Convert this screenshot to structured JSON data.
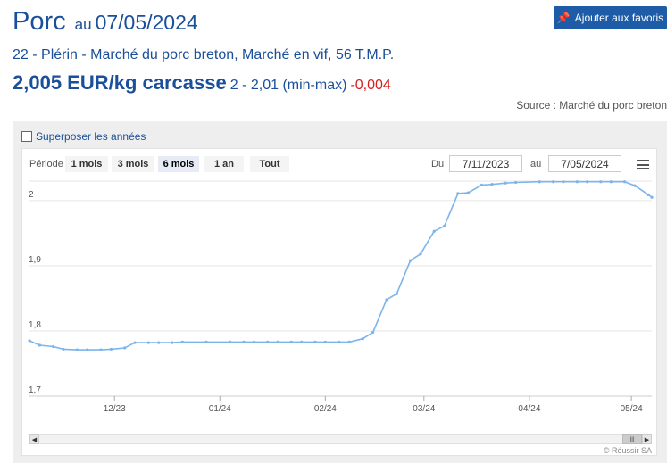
{
  "header": {
    "product": "Porc",
    "au": "au",
    "date": "07/05/2024",
    "favorite_label": "Ajouter aux favoris",
    "favorite_icon": "pin-icon",
    "subtitle": "22 - Plérin - Marché du porc breton, Marché en vif, 56 T.M.P.",
    "price": "2,005 EUR/kg carcasse",
    "range": "2 - 2,01 (min-max)",
    "delta": "-0,004",
    "source": "Source : Marché du porc breton"
  },
  "colors": {
    "brand": "#1a4f99",
    "button": "#1f5ca8",
    "negative": "#d32020",
    "line": "#7cb5ec",
    "grid": "#e6e6e6"
  },
  "controls": {
    "overlay_label": "Superposer les années",
    "overlay_checked": false,
    "period_label": "Période",
    "periods": [
      "1 mois",
      "3 mois",
      "6 mois",
      "1 an",
      "Tout"
    ],
    "active_period": "6 mois",
    "du_label": "Du",
    "au_label": "au",
    "from_date": "7/11/2023",
    "to_date": "7/05/2024",
    "menu_icon": "hamburger-icon"
  },
  "credits": "© Réussir SA",
  "chart_data": {
    "type": "line",
    "title": "",
    "xlabel": "",
    "ylabel": "",
    "ylim": [
      1.7,
      2.03
    ],
    "yticks": [
      1.7,
      1.8,
      1.9,
      2.0
    ],
    "ytick_labels": [
      "1,7",
      "1,8",
      "1,9",
      "2"
    ],
    "x_tick_labels": [
      "12/23",
      "01/24",
      "02/24",
      "03/24",
      "04/24",
      "05/24"
    ],
    "x_tick_dates": [
      "2023-12-01",
      "2024-01-01",
      "2024-02-01",
      "2024-03-01",
      "2024-04-01",
      "2024-05-01"
    ],
    "grid": true,
    "legend": false,
    "series": [
      {
        "x": [
          "2023-11-06",
          "2023-11-09",
          "2023-11-13",
          "2023-11-16",
          "2023-11-20",
          "2023-11-23",
          "2023-11-27",
          "2023-11-30",
          "2023-12-04",
          "2023-12-07",
          "2023-12-11",
          "2023-12-14",
          "2023-12-18",
          "2023-12-21",
          "2023-12-28",
          "2024-01-04",
          "2024-01-08",
          "2024-01-11",
          "2024-01-15",
          "2024-01-18",
          "2024-01-22",
          "2024-01-25",
          "2024-01-29",
          "2024-02-01",
          "2024-02-05",
          "2024-02-08",
          "2024-02-12",
          "2024-02-15",
          "2024-02-19",
          "2024-02-22",
          "2024-02-26",
          "2024-02-29",
          "2024-03-04",
          "2024-03-07",
          "2024-03-11",
          "2024-03-14",
          "2024-03-18",
          "2024-03-21",
          "2024-03-25",
          "2024-03-28",
          "2024-04-04",
          "2024-04-08",
          "2024-04-11",
          "2024-04-15",
          "2024-04-18",
          "2024-04-22",
          "2024-04-25",
          "2024-04-29",
          "2024-05-02",
          "2024-05-06",
          "2024-05-07"
        ],
        "values": [
          1.785,
          1.778,
          1.776,
          1.772,
          1.771,
          1.771,
          1.771,
          1.772,
          1.774,
          1.782,
          1.782,
          1.782,
          1.782,
          1.783,
          1.783,
          1.783,
          1.783,
          1.783,
          1.783,
          1.783,
          1.783,
          1.783,
          1.783,
          1.783,
          1.783,
          1.783,
          1.788,
          1.798,
          1.848,
          1.857,
          1.908,
          1.918,
          1.953,
          1.961,
          2.011,
          2.012,
          2.024,
          2.025,
          2.027,
          2.028,
          2.029,
          2.029,
          2.029,
          2.029,
          2.029,
          2.029,
          2.029,
          2.029,
          2.023,
          2.009,
          2.005
        ]
      }
    ]
  }
}
